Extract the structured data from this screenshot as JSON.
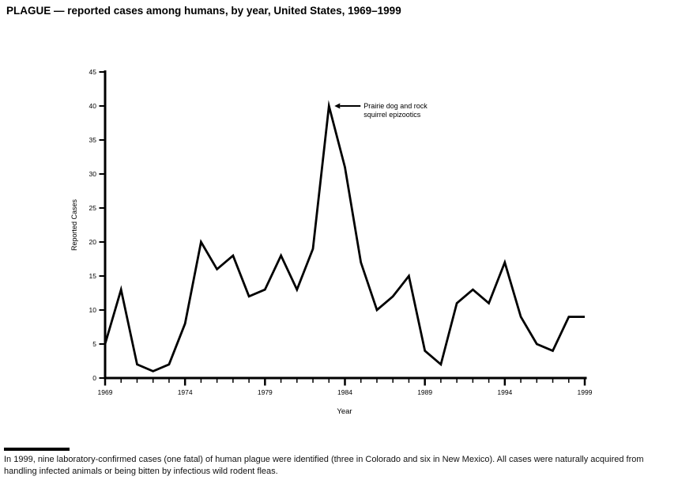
{
  "chart_data": {
    "type": "line",
    "title": "PLAGUE — reported cases among humans, by year, United States, 1969–1999",
    "xlabel": "Year",
    "ylabel": "Reported Cases",
    "x": [
      1969,
      1970,
      1971,
      1972,
      1973,
      1974,
      1975,
      1976,
      1977,
      1978,
      1979,
      1980,
      1981,
      1982,
      1983,
      1984,
      1985,
      1986,
      1987,
      1988,
      1989,
      1990,
      1991,
      1992,
      1993,
      1994,
      1995,
      1996,
      1997,
      1998,
      1999
    ],
    "values": [
      5,
      13,
      2,
      1,
      2,
      8,
      20,
      16,
      18,
      12,
      13,
      18,
      13,
      19,
      40,
      31,
      17,
      10,
      12,
      15,
      4,
      2,
      11,
      13,
      11,
      17,
      9,
      5,
      4,
      9,
      9
    ],
    "ylim": [
      0,
      45
    ],
    "y_ticks": [
      0,
      5,
      10,
      15,
      20,
      25,
      30,
      35,
      40,
      45
    ],
    "x_tick_labels": [
      1969,
      1974,
      1979,
      1984,
      1989,
      1994,
      1999
    ],
    "grid": false,
    "legend_position": "none",
    "line_color": "#000000",
    "annotation": {
      "line1": "Prairie dog and rock",
      "line2": "squirrel epizootics",
      "target": {
        "x": 1983,
        "y": 40
      }
    }
  },
  "footnote": {
    "text": "In 1999, nine laboratory-confirmed cases (one fatal) of human plague were identified (three in Colorado and six in New Mexico). All cases were naturally acquired from handling infected animals or being bitten by infectious wild rodent fleas."
  }
}
